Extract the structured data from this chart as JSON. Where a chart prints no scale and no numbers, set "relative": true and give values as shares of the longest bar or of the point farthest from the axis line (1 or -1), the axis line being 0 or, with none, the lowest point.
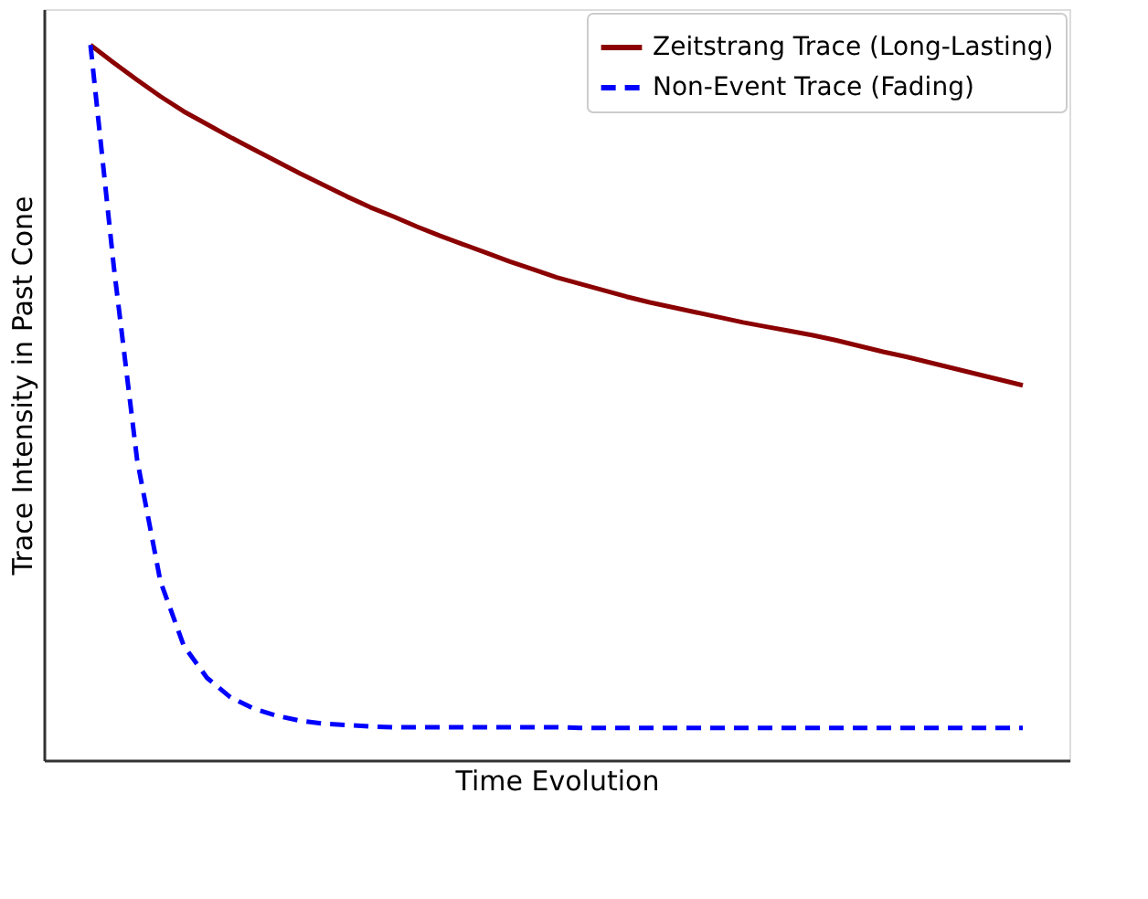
{
  "chart_data": {
    "type": "line",
    "relative": true,
    "xlabel": "Time Evolution",
    "ylabel": "Trace Intensity in Past Cone",
    "grid": false,
    "legend": "top right",
    "tick_labels": false,
    "categories": [
      null,
      null,
      null,
      null,
      null,
      null,
      null,
      null,
      null,
      null,
      null,
      null,
      null,
      null,
      null,
      null,
      null,
      null,
      null,
      null,
      null,
      null,
      null,
      null,
      null,
      null,
      null,
      null,
      null,
      null,
      null,
      null,
      null,
      null,
      null,
      null,
      null,
      null,
      null,
      null,
      null
    ],
    "series": [
      {
        "name": "Zeitstrang Trace (Long-Lasting)",
        "color": "#8b0000",
        "line_style": "solid",
        "values": [
          1.0,
          0.975,
          0.951,
          0.928,
          0.907,
          0.889,
          0.871,
          0.854,
          0.837,
          0.82,
          0.804,
          0.788,
          0.773,
          0.76,
          0.746,
          0.733,
          0.721,
          0.709,
          0.697,
          0.686,
          0.675,
          0.666,
          0.657,
          0.648,
          0.64,
          0.633,
          0.626,
          0.619,
          0.612,
          0.606,
          0.6,
          0.594,
          0.587,
          0.579,
          0.571,
          0.564,
          0.556,
          0.548,
          0.54,
          0.532,
          0.524
        ]
      },
      {
        "name": "Non-Event Trace (Fading)",
        "color": "#0000ff",
        "line_style": "dashed",
        "values": [
          1.0,
          0.69,
          0.42,
          0.25,
          0.16,
          0.115,
          0.088,
          0.072,
          0.062,
          0.055,
          0.051,
          0.049,
          0.047,
          0.046,
          0.046,
          0.046,
          0.046,
          0.046,
          0.046,
          0.046,
          0.046,
          0.045,
          0.045,
          0.045,
          0.045,
          0.045,
          0.045,
          0.045,
          0.045,
          0.045,
          0.045,
          0.045,
          0.045,
          0.045,
          0.045,
          0.045,
          0.045,
          0.045,
          0.045,
          0.045,
          0.045
        ]
      }
    ]
  }
}
